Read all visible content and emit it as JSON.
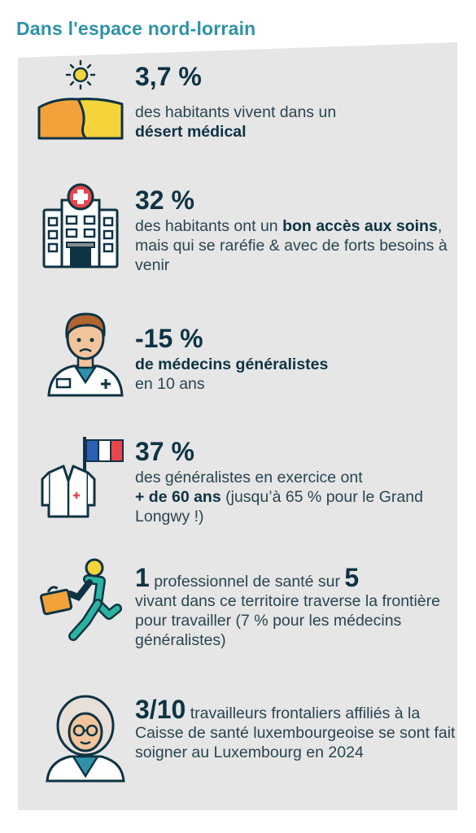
{
  "title": "Dans l'espace nord-lorrain",
  "items": [
    {
      "stat": "3,7 %",
      "line1": "des habitants vivent dans un",
      "bold1": "désert médical"
    },
    {
      "stat": "32 %",
      "pre": "des habitants ont un ",
      "bold1": "bon accès aux soins",
      "post": ", mais qui se raréfie & avec de forts besoins à venir"
    },
    {
      "stat": "-15 %",
      "bold1": "de médecins généralistes",
      "line2": "en 10 ans"
    },
    {
      "stat": "37 %",
      "line1": "des généralistes en exercice ont",
      "bold1": "+ de 60 ans",
      "post": " (jusqu’à 65 % pour le Grand Longwy !)"
    },
    {
      "stat": "1",
      "mid": " professionnel de santé sur ",
      "stat2": "5",
      "post": "vivant dans ce territoire traverse la frontière pour travailler (7 % pour les médecins généralistes)"
    },
    {
      "stat": "3/10",
      "post": " travailleurs frontaliers affiliés à la Caisse de santé luxembourgeoise se sont fait soigner au Luxembourg en 2024"
    }
  ],
  "colors": {
    "title": "#2e93a8",
    "text": "#0e3344",
    "panel": "#e6e6e6",
    "accent_orange": "#f3a13a",
    "accent_teal": "#2bb3a2"
  }
}
